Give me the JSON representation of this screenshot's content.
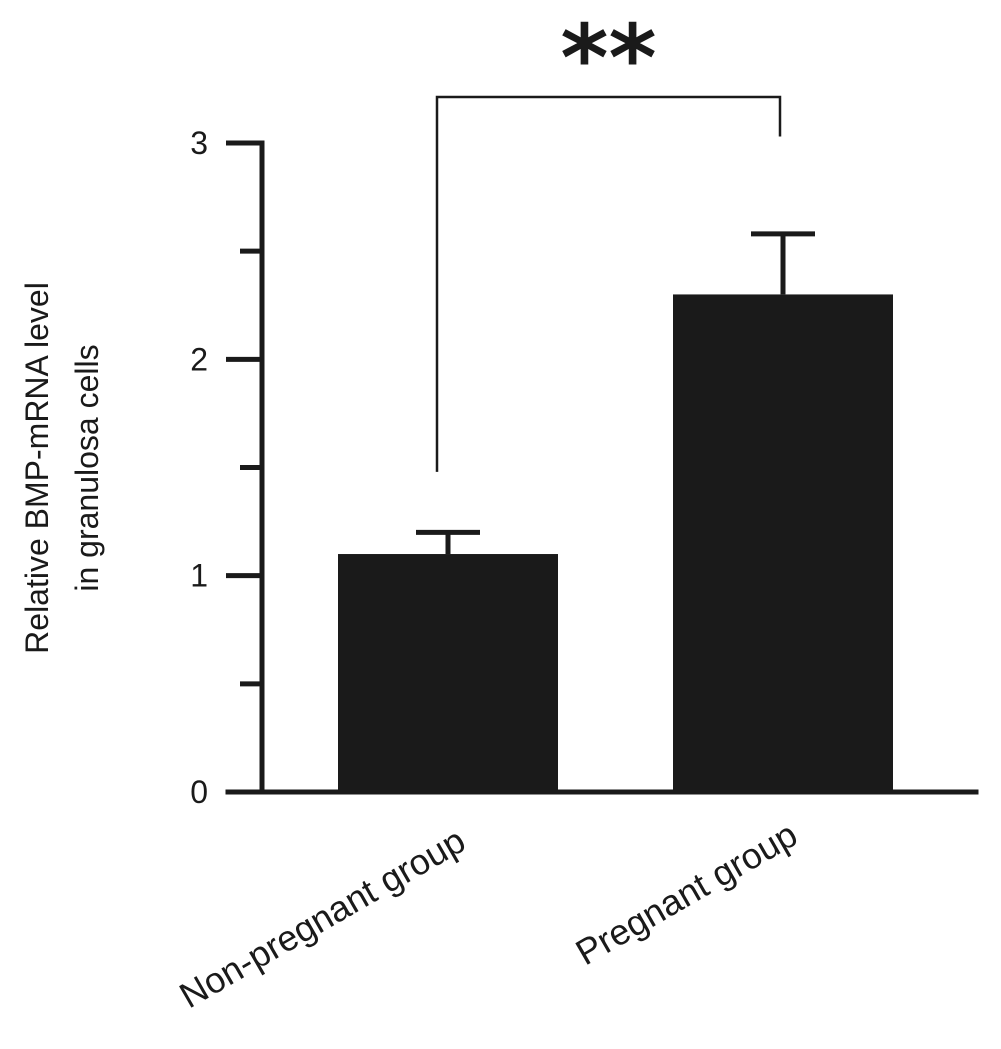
{
  "chart_data": {
    "type": "bar",
    "title": "",
    "xlabel": "",
    "ylabel_lines": [
      "Relative BMP-mRNA level",
      "in granulosa cells"
    ],
    "categories": [
      "Non-pregnant group",
      "Pregnant group"
    ],
    "values": [
      1.1,
      2.3
    ],
    "errors": [
      0.1,
      0.28
    ],
    "ylim": [
      0,
      3
    ],
    "major_ticks": [
      0,
      1,
      2,
      3
    ],
    "minor_ticks": [
      0.5,
      1.5,
      2.5
    ],
    "grid": false,
    "legend": "none",
    "bar_color": "#1a1a1a",
    "significance": {
      "label": "**",
      "between": [
        0,
        1
      ]
    }
  }
}
